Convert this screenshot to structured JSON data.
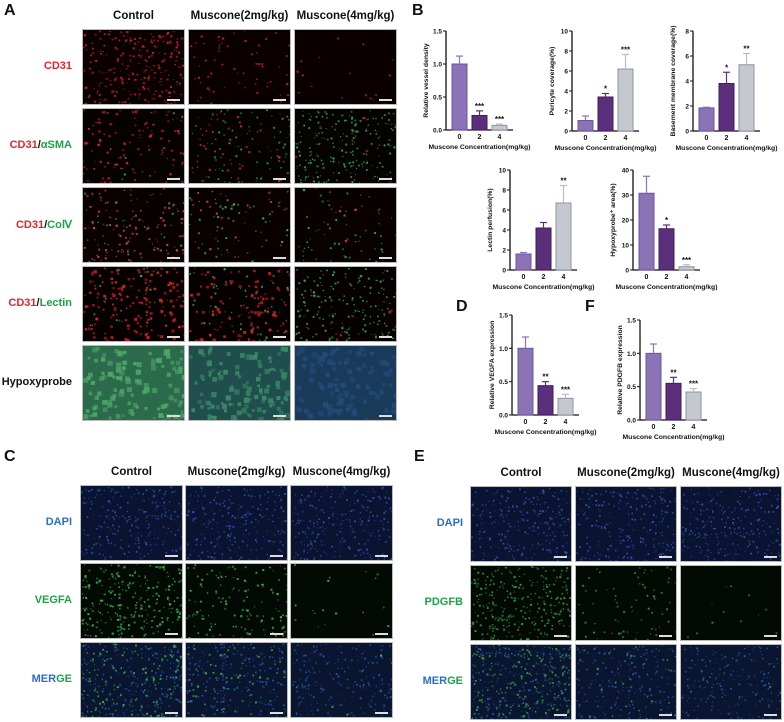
{
  "panels": {
    "A": {
      "letter": "A",
      "columns": [
        "Control",
        "Muscone(2mg/kg)",
        "Muscone(4mg/kg)"
      ],
      "rows": [
        {
          "parts": [
            {
              "text": "CD31",
              "color": "red"
            }
          ],
          "stain": "cd31"
        },
        {
          "parts": [
            {
              "text": "CD31",
              "color": "red"
            },
            {
              "text": "/",
              "color": "black"
            },
            {
              "text": "αSMA",
              "color": "green"
            }
          ],
          "stain": "asma"
        },
        {
          "parts": [
            {
              "text": "CD31",
              "color": "red"
            },
            {
              "text": "/",
              "color": "black"
            },
            {
              "text": "CoⅣ",
              "color": "green"
            }
          ],
          "stain": "col4"
        },
        {
          "parts": [
            {
              "text": "CD31",
              "color": "red"
            },
            {
              "text": "/",
              "color": "black"
            },
            {
              "text": "Lectin",
              "color": "green"
            }
          ],
          "stain": "lectin"
        },
        {
          "parts": [
            {
              "text": "Hypoxyprobe",
              "color": "black"
            }
          ],
          "stain": "hypoxy"
        }
      ]
    },
    "B": {
      "letter": "B"
    },
    "C": {
      "letter": "C",
      "columns": [
        "Control",
        "Muscone(2mg/kg)",
        "Muscone(4mg/kg)"
      ],
      "rows": [
        {
          "parts": [
            {
              "text": "DAPI",
              "color": "blue"
            }
          ],
          "stain": "dapi"
        },
        {
          "parts": [
            {
              "text": "VEGFA",
              "color": "green"
            }
          ],
          "stain": "vegfa"
        },
        {
          "parts": [
            {
              "text": "MER",
              "color": "blue"
            },
            {
              "text": "GE",
              "color": "green"
            }
          ],
          "stain": "merge_v"
        }
      ]
    },
    "D": {
      "letter": "D"
    },
    "E": {
      "letter": "E",
      "columns": [
        "Control",
        "Muscone(2mg/kg)",
        "Muscone(4mg/kg)"
      ],
      "rows": [
        {
          "parts": [
            {
              "text": "DAPI",
              "color": "blue"
            }
          ],
          "stain": "dapi"
        },
        {
          "parts": [
            {
              "text": "PDGFB",
              "color": "green"
            }
          ],
          "stain": "pdgfb"
        },
        {
          "parts": [
            {
              "text": "MER",
              "color": "blue"
            },
            {
              "text": "GE",
              "color": "green"
            }
          ],
          "stain": "merge_p"
        }
      ]
    },
    "F": {
      "letter": "F"
    }
  },
  "colors": {
    "bar_0": "#8b73b5",
    "bar_2": "#5b2f7c",
    "bar_4": "#c4c8d1",
    "err_0": "#8b73b5",
    "err_2": "#5b2f7c",
    "err_4": "#b8bcc6",
    "label_red": "#e3242b",
    "label_green": "#1fa14a",
    "label_blue": "#2a6fc0"
  },
  "chart_data": [
    {
      "id": "vessel-density",
      "panel": "B",
      "type": "bar",
      "title": "",
      "xlabel": "Muscone Concentration(mg/kg)",
      "ylabel": "Relative vessel density",
      "categories": [
        "0",
        "2",
        "4"
      ],
      "values": [
        1.0,
        0.22,
        0.07
      ],
      "errors": [
        0.12,
        0.07,
        0.02
      ],
      "significance": [
        "",
        "***",
        "***"
      ],
      "ylim": [
        0,
        1.5
      ],
      "yticks": [
        "0.0",
        "0.5",
        "1.0",
        "1.5"
      ],
      "ytick_values": [
        0,
        0.5,
        1.0,
        1.5
      ],
      "grid": false
    },
    {
      "id": "pericyte-coverage",
      "panel": "B",
      "type": "bar",
      "title": "",
      "xlabel": "Muscone Concentration(mg/kg)",
      "ylabel": "Pericyte coverage(%)",
      "categories": [
        "0",
        "2",
        "4"
      ],
      "values": [
        1.05,
        3.4,
        6.2
      ],
      "errors": [
        0.45,
        0.35,
        1.45
      ],
      "significance": [
        "",
        "*",
        "***"
      ],
      "ylim": [
        0,
        10
      ],
      "yticks": [
        "0",
        "2",
        "4",
        "6",
        "8",
        "10"
      ],
      "ytick_values": [
        0,
        2,
        4,
        6,
        8,
        10
      ],
      "grid": false
    },
    {
      "id": "basement-membrane-coverage",
      "panel": "B",
      "type": "bar",
      "title": "",
      "xlabel": "Muscone Concentration(mg/kg)",
      "ylabel": "Basement membrane coverage(%)",
      "categories": [
        "0",
        "2",
        "4"
      ],
      "values": [
        1.85,
        3.8,
        5.3
      ],
      "errors": [
        0.05,
        0.9,
        0.9
      ],
      "significance": [
        "",
        "*",
        "**"
      ],
      "ylim": [
        0,
        8
      ],
      "yticks": [
        "0",
        "2",
        "4",
        "6",
        "8"
      ],
      "ytick_values": [
        0,
        2,
        4,
        6,
        8
      ],
      "grid": false
    },
    {
      "id": "lectin-perfusion",
      "panel": "B",
      "type": "bar",
      "title": "",
      "xlabel": "Muscone Concentration(mg/kg)",
      "ylabel": "Lectin perfusion(%)",
      "categories": [
        "0",
        "2",
        "4"
      ],
      "values": [
        1.6,
        4.2,
        6.7
      ],
      "errors": [
        0.15,
        0.55,
        1.75
      ],
      "significance": [
        "",
        "",
        "**"
      ],
      "ylim": [
        0,
        10
      ],
      "yticks": [
        "0",
        "2",
        "4",
        "6",
        "8",
        "10"
      ],
      "ytick_values": [
        0,
        2,
        4,
        6,
        8,
        10
      ],
      "grid": false
    },
    {
      "id": "hypoxyprobe-area",
      "panel": "B",
      "type": "bar",
      "title": "",
      "xlabel": "Muscone Concentration(mg/kg)",
      "ylabel": "Hypoxyprobe⁺ area(%)",
      "categories": [
        "0",
        "2",
        "4"
      ],
      "values": [
        30.7,
        16.5,
        1.3
      ],
      "errors": [
        6.8,
        1.5,
        0.8
      ],
      "significance": [
        "",
        "*",
        "***"
      ],
      "ylim": [
        0,
        40
      ],
      "yticks": [
        "0",
        "10",
        "20",
        "30",
        "40"
      ],
      "ytick_values": [
        0,
        10,
        20,
        30,
        40
      ],
      "grid": false
    },
    {
      "id": "vegfa-expression",
      "panel": "D",
      "type": "bar",
      "title": "",
      "xlabel": "Muscone Concentration(mg/kg)",
      "ylabel": "Relative VEGFA expression",
      "categories": [
        "0",
        "2",
        "4"
      ],
      "values": [
        1.0,
        0.44,
        0.25
      ],
      "errors": [
        0.17,
        0.06,
        0.06
      ],
      "significance": [
        "",
        "**",
        "***"
      ],
      "ylim": [
        0,
        1.5
      ],
      "yticks": [
        "0.0",
        "0.5",
        "1.0",
        "1.5"
      ],
      "ytick_values": [
        0,
        0.5,
        1.0,
        1.5
      ],
      "grid": false
    },
    {
      "id": "pdgfb-expression",
      "panel": "F",
      "type": "bar",
      "title": "",
      "xlabel": "Muscone Concentration(mg/kg)",
      "ylabel": "Relative PDGFB expression",
      "categories": [
        "0",
        "2",
        "4"
      ],
      "values": [
        1.0,
        0.55,
        0.42
      ],
      "errors": [
        0.14,
        0.09,
        0.05
      ],
      "significance": [
        "",
        "**",
        "***"
      ],
      "ylim": [
        0,
        1.5
      ],
      "yticks": [
        "0.0",
        "0.5",
        "1.0",
        "1.5"
      ],
      "ytick_values": [
        0,
        0.5,
        1.0,
        1.5
      ],
      "grid": false
    }
  ]
}
